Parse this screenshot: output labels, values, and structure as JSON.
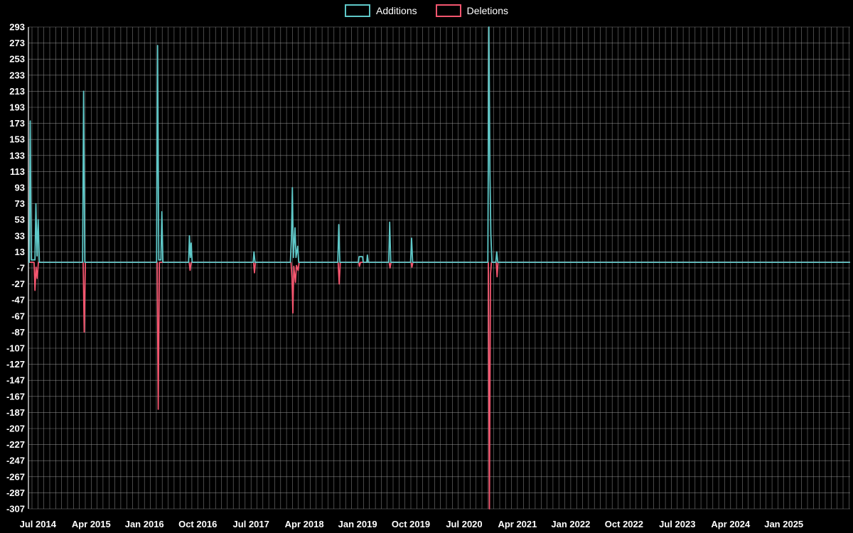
{
  "theme": {
    "background": "#000000",
    "text_color": "#ffffff",
    "grid_color": "#999999",
    "axis_color": "#ffffff"
  },
  "legend": {
    "position": "top-center",
    "items": [
      {
        "label": "Additions",
        "color": "#5fc8c8"
      },
      {
        "label": "Deletions",
        "color": "#f4566f"
      }
    ]
  },
  "chart_data": {
    "type": "line",
    "title": "",
    "xlabel": "",
    "ylabel": "",
    "x_unit": "months since 2014-06",
    "x_domain": [
      -0.6,
      138.2
    ],
    "y_domain": [
      -307,
      293
    ],
    "grid": {
      "horizontal": true,
      "vertical": true,
      "vertical_every_months": 1,
      "color": "#999999"
    },
    "y_ticks": [
      293,
      273,
      253,
      233,
      213,
      193,
      173,
      153,
      133,
      113,
      93,
      73,
      53,
      33,
      13,
      -7,
      -27,
      -47,
      -67,
      -87,
      -107,
      -127,
      -147,
      -167,
      -187,
      -207,
      -227,
      -247,
      -267,
      -287,
      -307
    ],
    "x_ticks": [
      {
        "t": 1,
        "label": "Jul 2014"
      },
      {
        "t": 10,
        "label": "Apr 2015"
      },
      {
        "t": 19,
        "label": "Jan 2016"
      },
      {
        "t": 28,
        "label": "Oct 2016"
      },
      {
        "t": 37,
        "label": "Jul 2017"
      },
      {
        "t": 46,
        "label": "Apr 2018"
      },
      {
        "t": 55,
        "label": "Jan 2019"
      },
      {
        "t": 64,
        "label": "Oct 2019"
      },
      {
        "t": 73,
        "label": "Jul 2020"
      },
      {
        "t": 82,
        "label": "Apr 2021"
      },
      {
        "t": 91,
        "label": "Jan 2022"
      },
      {
        "t": 100,
        "label": "Oct 2022"
      },
      {
        "t": 109,
        "label": "Jul 2023"
      },
      {
        "t": 118,
        "label": "Apr 2024"
      },
      {
        "t": 127,
        "label": "Jan 2025"
      }
    ],
    "series": [
      {
        "name": "Additions",
        "color": "#5fc8c8",
        "points": [
          [
            -0.6,
            0
          ],
          [
            -0.45,
            0
          ],
          [
            -0.3,
            176
          ],
          [
            -0.12,
            3
          ],
          [
            0.5,
            3
          ],
          [
            0.66,
            73
          ],
          [
            0.85,
            8
          ],
          [
            1.05,
            53
          ],
          [
            1.25,
            0
          ],
          [
            8.55,
            0
          ],
          [
            8.72,
            213
          ],
          [
            8.92,
            0
          ],
          [
            21.05,
            0
          ],
          [
            21.22,
            270
          ],
          [
            21.42,
            3
          ],
          [
            21.78,
            3
          ],
          [
            21.94,
            63
          ],
          [
            22.12,
            0
          ],
          [
            26.45,
            0
          ],
          [
            26.6,
            33
          ],
          [
            26.75,
            6
          ],
          [
            26.9,
            24
          ],
          [
            27.05,
            0
          ],
          [
            37.35,
            0
          ],
          [
            37.5,
            13
          ],
          [
            37.68,
            0
          ],
          [
            43.65,
            0
          ],
          [
            43.82,
            30
          ],
          [
            43.98,
            93
          ],
          [
            44.15,
            6
          ],
          [
            44.42,
            43
          ],
          [
            44.6,
            6
          ],
          [
            44.88,
            20
          ],
          [
            45.05,
            0
          ],
          [
            51.65,
            0
          ],
          [
            51.82,
            47
          ],
          [
            52.0,
            0
          ],
          [
            55.15,
            0
          ],
          [
            55.25,
            7
          ],
          [
            55.85,
            7
          ],
          [
            55.95,
            0
          ],
          [
            56.55,
            0
          ],
          [
            56.65,
            9
          ],
          [
            56.8,
            0
          ],
          [
            60.25,
            0
          ],
          [
            60.42,
            50
          ],
          [
            60.6,
            0
          ],
          [
            63.95,
            0
          ],
          [
            64.12,
            30
          ],
          [
            64.3,
            0
          ],
          [
            77.0,
            0
          ],
          [
            77.18,
            293
          ],
          [
            77.35,
            115
          ],
          [
            77.5,
            35
          ],
          [
            77.7,
            0
          ],
          [
            78.35,
            0
          ],
          [
            78.5,
            13
          ],
          [
            78.68,
            0
          ],
          [
            138.2,
            0
          ]
        ]
      },
      {
        "name": "Deletions",
        "color": "#f4566f",
        "points": [
          [
            -0.6,
            0
          ],
          [
            0.35,
            0
          ],
          [
            0.5,
            -35
          ],
          [
            0.68,
            -6
          ],
          [
            0.88,
            -20
          ],
          [
            1.08,
            0
          ],
          [
            8.65,
            0
          ],
          [
            8.82,
            -87
          ],
          [
            9.02,
            0
          ],
          [
            21.15,
            0
          ],
          [
            21.32,
            -183
          ],
          [
            21.52,
            0
          ],
          [
            26.55,
            0
          ],
          [
            26.7,
            -10
          ],
          [
            26.88,
            0
          ],
          [
            37.42,
            0
          ],
          [
            37.58,
            -13
          ],
          [
            37.75,
            0
          ],
          [
            43.75,
            0
          ],
          [
            43.92,
            -20
          ],
          [
            44.06,
            -63
          ],
          [
            44.22,
            -5
          ],
          [
            44.5,
            -25
          ],
          [
            44.68,
            -4
          ],
          [
            44.95,
            -10
          ],
          [
            45.12,
            0
          ],
          [
            51.72,
            0
          ],
          [
            51.9,
            -27
          ],
          [
            52.08,
            0
          ],
          [
            55.2,
            0
          ],
          [
            55.32,
            -5
          ],
          [
            55.48,
            0
          ],
          [
            60.32,
            0
          ],
          [
            60.48,
            -7
          ],
          [
            60.65,
            0
          ],
          [
            64.02,
            0
          ],
          [
            64.18,
            -6
          ],
          [
            64.35,
            0
          ],
          [
            77.08,
            0
          ],
          [
            77.26,
            -307
          ],
          [
            77.45,
            -15
          ],
          [
            77.6,
            0
          ],
          [
            78.42,
            0
          ],
          [
            78.56,
            -18
          ],
          [
            78.72,
            0
          ],
          [
            138.2,
            0
          ]
        ]
      }
    ],
    "legend_position": "top-center"
  }
}
